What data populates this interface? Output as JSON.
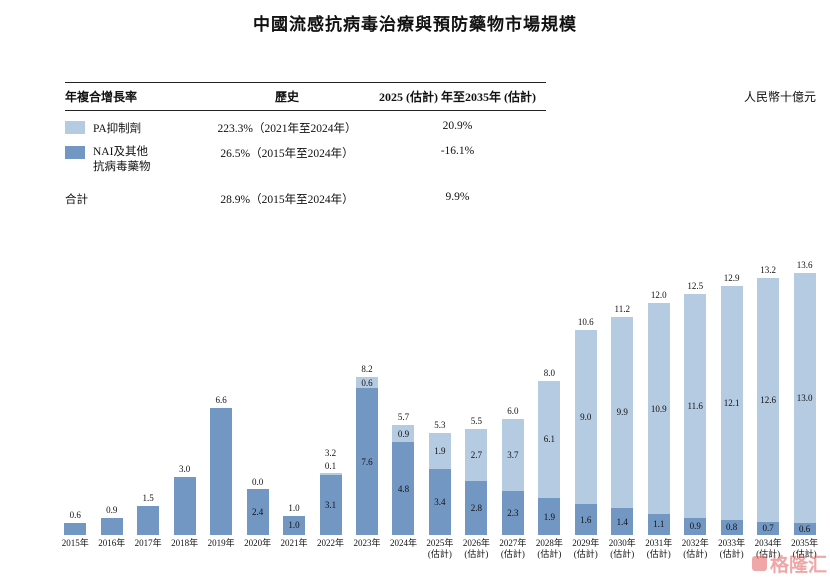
{
  "title": "中國流感抗病毒治療與預防藥物市場規模",
  "unit_label": "人民幣十億元",
  "table": {
    "headers": {
      "col1": "年複合增長率",
      "col2": "歷史",
      "col3": "2025 (估計) 年至2035年 (估計)"
    },
    "rows": [
      {
        "legend": "pa",
        "label": "PA抑制劑",
        "historical": "223.3%（2021年至2024年）",
        "forecast": "20.9%"
      },
      {
        "legend": "nai",
        "label_line1": "NAI及其他",
        "label_line2": "抗病毒藥物",
        "historical": "26.5%（2015年至2024年）",
        "forecast": "-16.1%"
      },
      {
        "legend": null,
        "label": "合計",
        "historical": "28.9%（2015年至2024年）",
        "forecast": "9.9%"
      }
    ]
  },
  "watermark": {
    "text": "格隆汇"
  },
  "chart_data": {
    "type": "bar",
    "stacked": true,
    "title": "中國流感抗病毒治療與預防藥物市場規模",
    "ylabel": "人民幣十億元",
    "ylim": [
      0,
      14
    ],
    "grid": false,
    "legend_position": "table-top-left",
    "estimate_suffix": "(估計)",
    "legend": [
      {
        "key": "pa",
        "label": "PA抑制劑",
        "color": "#b5cbe2"
      },
      {
        "key": "nai",
        "label": "NAI及其他抗病毒藥物",
        "color": "#7397c3"
      }
    ],
    "bars": [
      {
        "year": "2015年",
        "est": false,
        "pa": 0,
        "nai": 0.6,
        "total_label": "0.6",
        "pa_label": null,
        "nai_label": null
      },
      {
        "year": "2016年",
        "est": false,
        "pa": 0,
        "nai": 0.9,
        "total_label": "0.9",
        "pa_label": null,
        "nai_label": null
      },
      {
        "year": "2017年",
        "est": false,
        "pa": 0,
        "nai": 1.5,
        "total_label": "1.5",
        "pa_label": null,
        "nai_label": null
      },
      {
        "year": "2018年",
        "est": false,
        "pa": 0,
        "nai": 3.0,
        "total_label": "3.0",
        "pa_label": null,
        "nai_label": null
      },
      {
        "year": "2019年",
        "est": false,
        "pa": 0,
        "nai": 6.6,
        "total_label": "6.6",
        "pa_label": null,
        "nai_label": null
      },
      {
        "year": "2020年",
        "est": false,
        "pa": 0,
        "nai": 2.4,
        "total_label": null,
        "pa_label": "0.0",
        "nai_label": "2.4"
      },
      {
        "year": "2021年",
        "est": false,
        "pa": 0,
        "nai": 1.0,
        "total_label": "1.0",
        "pa_label": null,
        "nai_label": "1.0"
      },
      {
        "year": "2022年",
        "est": false,
        "pa": 0.1,
        "nai": 3.1,
        "total_label": "3.2",
        "pa_label": "0.1",
        "nai_label": "3.1"
      },
      {
        "year": "2023年",
        "est": false,
        "pa": 0.6,
        "nai": 7.6,
        "total_label": "8.2",
        "pa_label": "0.6",
        "nai_label": "7.6"
      },
      {
        "year": "2024年",
        "est": false,
        "pa": 0.9,
        "nai": 4.8,
        "total_label": "5.7",
        "pa_label": "0.9",
        "nai_label": "4.8"
      },
      {
        "year": "2025年",
        "est": true,
        "pa": 1.9,
        "nai": 3.4,
        "total_label": "5.3",
        "pa_label": "1.9",
        "nai_label": "3.4"
      },
      {
        "year": "2026年",
        "est": true,
        "pa": 2.7,
        "nai": 2.8,
        "total_label": "5.5",
        "pa_label": "2.7",
        "nai_label": "2.8"
      },
      {
        "year": "2027年",
        "est": true,
        "pa": 3.7,
        "nai": 2.3,
        "total_label": "6.0",
        "pa_label": "3.7",
        "nai_label": "2.3"
      },
      {
        "year": "2028年",
        "est": true,
        "pa": 6.1,
        "nai": 1.9,
        "total_label": "8.0",
        "pa_label": "6.1",
        "nai_label": "1.9"
      },
      {
        "year": "2029年",
        "est": true,
        "pa": 9.0,
        "nai": 1.6,
        "total_label": "10.6",
        "pa_label": "9.0",
        "nai_label": "1.6"
      },
      {
        "year": "2030年",
        "est": true,
        "pa": 9.9,
        "nai": 1.4,
        "total_label": "11.2",
        "pa_label": "9.9",
        "nai_label": "1.4"
      },
      {
        "year": "2031年",
        "est": true,
        "pa": 10.9,
        "nai": 1.1,
        "total_label": "12.0",
        "pa_label": "10.9",
        "nai_label": "1.1"
      },
      {
        "year": "2032年",
        "est": true,
        "pa": 11.6,
        "nai": 0.9,
        "total_label": "12.5",
        "pa_label": "11.6",
        "nai_label": "0.9"
      },
      {
        "year": "2033年",
        "est": true,
        "pa": 12.1,
        "nai": 0.8,
        "total_label": "12.9",
        "pa_label": "12.1",
        "nai_label": "0.8"
      },
      {
        "year": "2034年",
        "est": true,
        "pa": 12.6,
        "nai": 0.7,
        "total_label": "13.2",
        "pa_label": "12.6",
        "nai_label": "0.7"
      },
      {
        "year": "2035年",
        "est": true,
        "pa": 13.0,
        "nai": 0.6,
        "total_label": "13.6",
        "pa_label": "13.0",
        "nai_label": "0.6"
      }
    ]
  }
}
